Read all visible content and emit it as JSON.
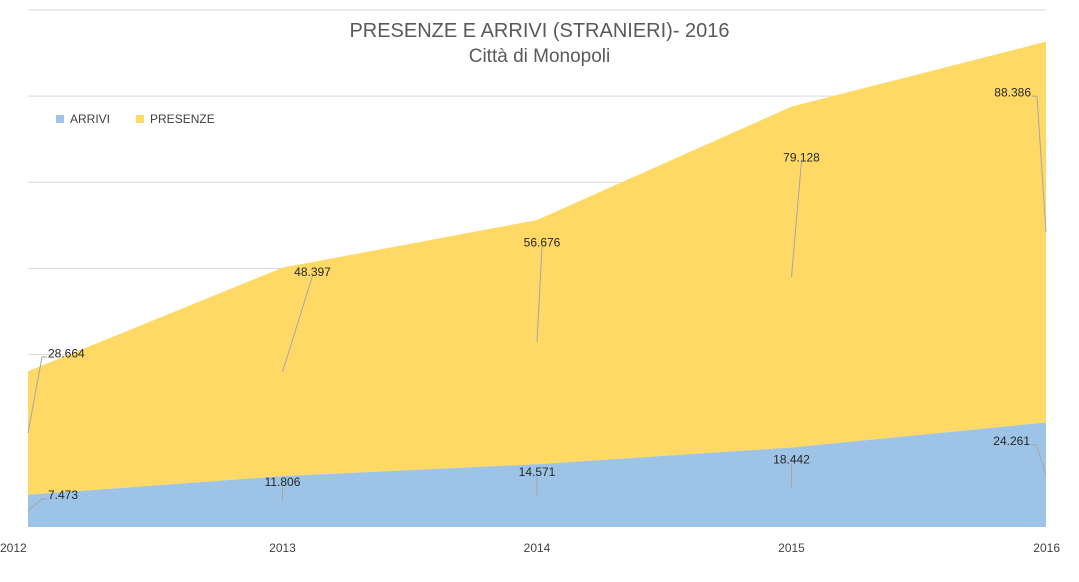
{
  "chart_data": {
    "type": "area",
    "title": "PRESENZE E ARRIVI (STRANIERI)- 2016",
    "subtitle": "Città di Monopoli",
    "categories": [
      "2012",
      "2013",
      "2014",
      "2015",
      "2016"
    ],
    "series": [
      {
        "name": "ARRIVI",
        "values": [
          7473,
          11806,
          14571,
          18442,
          24261
        ],
        "labels": [
          "7.473",
          "11.806",
          "14.571",
          "18.442",
          "24.261"
        ],
        "color": "#9DC3E6"
      },
      {
        "name": "PRESENZE",
        "values": [
          28664,
          48397,
          56676,
          79128,
          88386
        ],
        "labels": [
          "28.664",
          "48.397",
          "56.676",
          "79.128",
          "88.386"
        ],
        "color": "#FFD966"
      }
    ],
    "stacked": true,
    "ylim": [
      0,
      120000
    ],
    "grid": true,
    "legend_position": "top-left"
  }
}
